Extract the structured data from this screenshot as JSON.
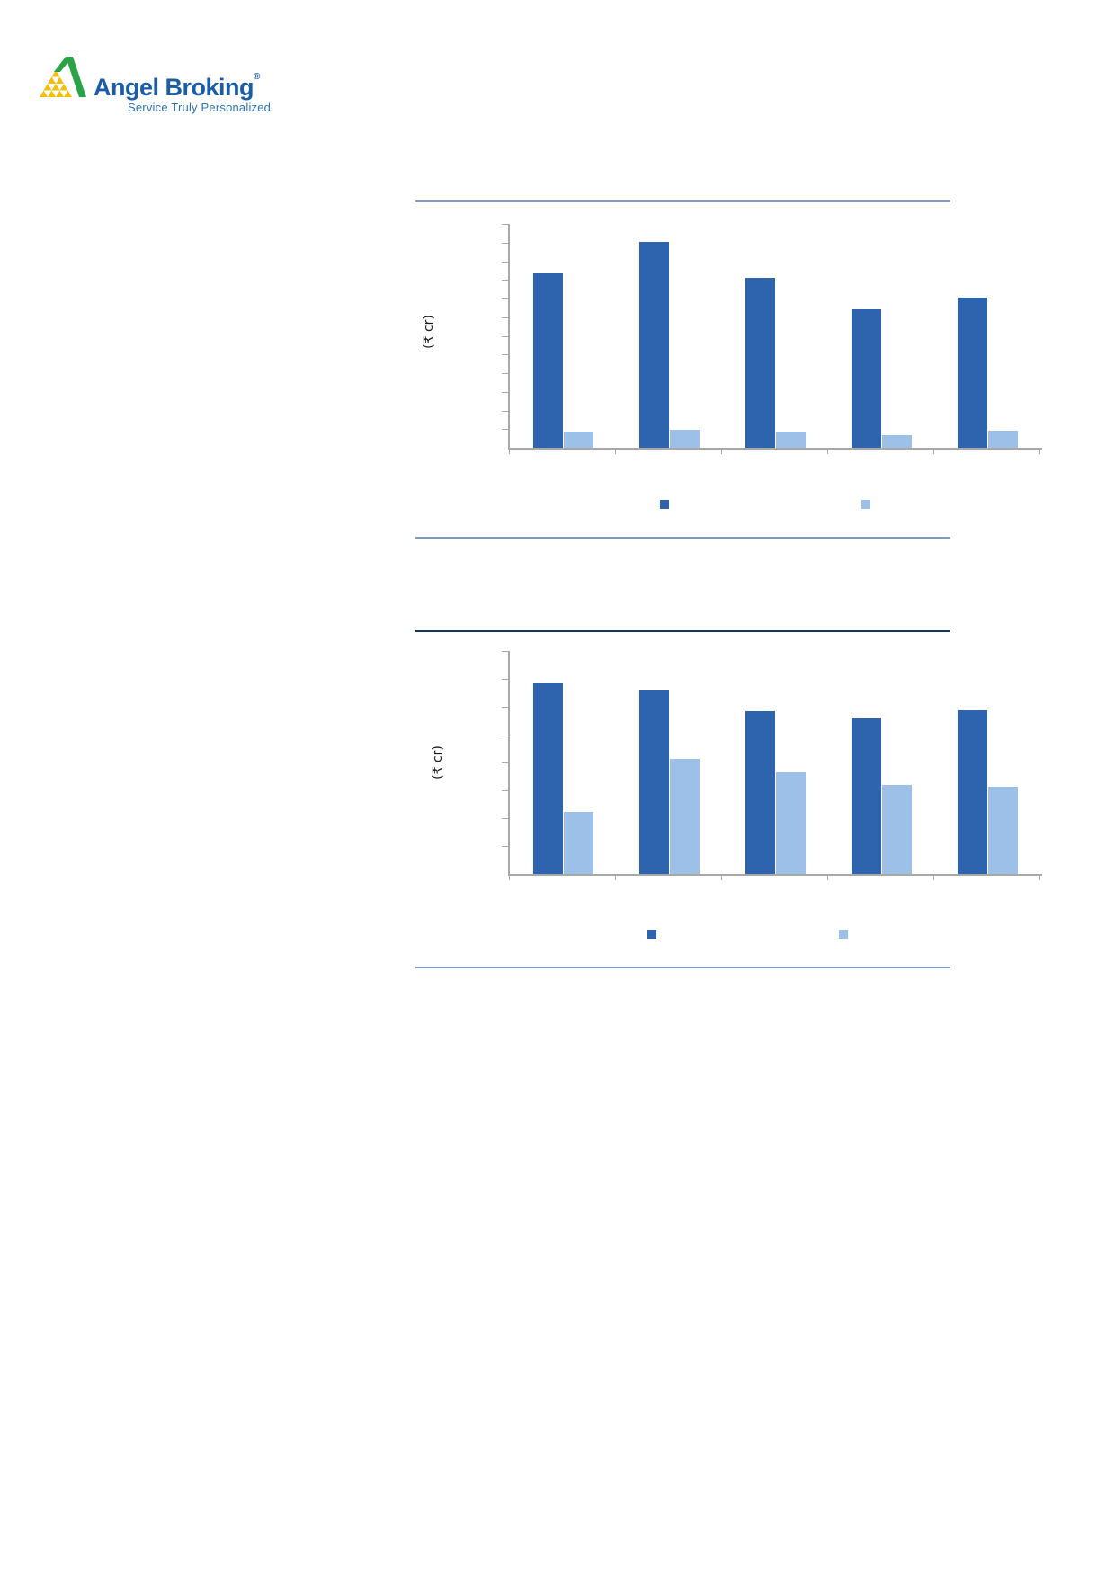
{
  "page": {
    "background_color": "#ffffff"
  },
  "logo": {
    "brand": "Angel Broking",
    "registered": "®",
    "tagline": "Service Truly Personalized",
    "brand_color": "#1a5ca8",
    "tagline_color": "#2e73b5",
    "mark_green": "#2aa347",
    "mark_yellow": "#f4be0b"
  },
  "rules": {
    "steel_color": "#7d9cc1",
    "navy_color": "#17365d"
  },
  "axis_color": "#a8a8a8",
  "chart_data": [
    {
      "type": "bar",
      "title": "",
      "xlabel": "",
      "ylabel": "(₹ cr)",
      "categories": [
        "",
        "",
        "",
        "",
        ""
      ],
      "tick_labels_visible": false,
      "y_axis_intervals": 12,
      "grid": false,
      "legend_position": "bottom-center",
      "legend_labels_visible": false,
      "series": [
        {
          "name": "dark-blue-series",
          "label": "",
          "color": "#2e64ae",
          "values_frac_of_axis_max": [
            0.78,
            0.92,
            0.76,
            0.62,
            0.67
          ]
        },
        {
          "name": "light-blue-series",
          "label": "",
          "color": "#9cc0e8",
          "values_frac_of_axis_max": [
            0.072,
            0.08,
            0.072,
            0.056,
            0.076
          ]
        }
      ]
    },
    {
      "type": "bar",
      "title": "",
      "xlabel": "",
      "ylabel": "(₹ cr)",
      "categories": [
        "",
        "",
        "",
        "",
        ""
      ],
      "tick_labels_visible": false,
      "y_axis_intervals": 8,
      "grid": false,
      "legend_position": "bottom-center",
      "legend_labels_visible": false,
      "series": [
        {
          "name": "dark-blue-series",
          "label": "",
          "color": "#2e64ae",
          "values_frac_of_axis_max": [
            0.855,
            0.823,
            0.73,
            0.698,
            0.734
          ]
        },
        {
          "name": "light-blue-series",
          "label": "",
          "color": "#9cc0e8",
          "values_frac_of_axis_max": [
            0.278,
            0.516,
            0.456,
            0.399,
            0.391
          ]
        }
      ]
    }
  ]
}
